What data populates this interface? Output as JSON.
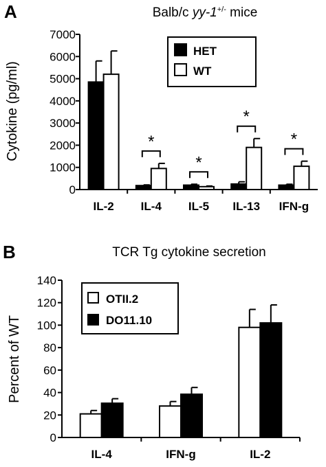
{
  "chart_data": [
    {
      "panel": "A",
      "type": "bar",
      "title_prefix": "Balb/c ",
      "title_italic": "yy-1",
      "title_sup": "+/-",
      "title_suffix": " mice",
      "ylabel": "Cytokine (pg/ml)",
      "xlabel": "",
      "ylim": [
        0,
        7000
      ],
      "yticks": [
        "0",
        "1000",
        "2000",
        "3000",
        "4000",
        "5000",
        "6000",
        "7000"
      ],
      "categories": [
        "IL-2",
        "IL-4",
        "IL-5",
        "IL-13",
        "IFN-g"
      ],
      "series": [
        {
          "name": "HET",
          "color": "#000000",
          "values": [
            4850,
            180,
            200,
            250,
            200
          ],
          "errors": [
            950,
            30,
            40,
            100,
            40
          ]
        },
        {
          "name": "WT",
          "color": "#ffffff",
          "values": [
            5200,
            950,
            130,
            1900,
            1050
          ],
          "errors": [
            1050,
            230,
            30,
            400,
            230
          ]
        }
      ],
      "significance": [
        "",
        "*",
        "*",
        "*",
        "*"
      ],
      "legend_position": "top-right",
      "grid": false
    },
    {
      "panel": "B",
      "type": "bar",
      "title": "TCR Tg cytokine secretion",
      "ylabel": "Percent of WT",
      "xlabel": "",
      "ylim": [
        0,
        140
      ],
      "yticks": [
        "0",
        "20",
        "40",
        "60",
        "80",
        "100",
        "120",
        "140"
      ],
      "categories": [
        "IL-4",
        "IFN-g",
        "IL-2"
      ],
      "series": [
        {
          "name": "OTII.2",
          "color": "#ffffff",
          "values": [
            21,
            28,
            98
          ],
          "errors": [
            3,
            4,
            16
          ]
        },
        {
          "name": "DO11.10",
          "color": "#000000",
          "values": [
            30.5,
            38.5,
            102
          ],
          "errors": [
            4,
            6,
            16
          ]
        }
      ],
      "legend_position": "top-left",
      "grid": false
    }
  ]
}
